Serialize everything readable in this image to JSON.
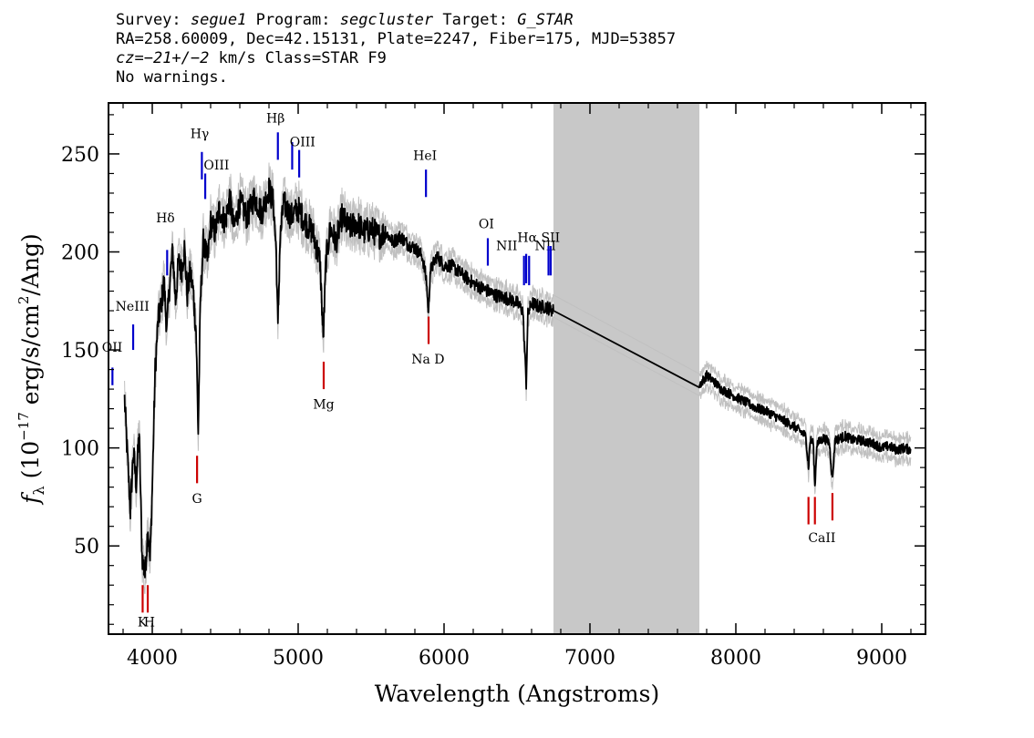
{
  "header": {
    "survey_label": "Survey:",
    "survey": "segue1",
    "program_label": "Program:",
    "program": "segcluster",
    "target_label": "Target:",
    "target": "G_STAR",
    "line2": "RA=258.60009, Dec=42.15131, Plate=2247, Fiber=175, MJD=53857",
    "cz_label": "cz",
    "cz_value": "=−21+/−2",
    "cz_rest": " km/s Class=STAR F9",
    "line4": "No warnings."
  },
  "chart_data": {
    "type": "line",
    "title": "",
    "xlabel": "Wavelength (Angstroms)",
    "ylabel_sym": "f",
    "ylabel_sub": "λ",
    "ylabel_open": " (10",
    "ylabel_exp": "−17",
    "ylabel_mid": " erg/s/cm",
    "ylabel_exp2": "2",
    "ylabel_close": "/Ang)",
    "xlim": [
      3700,
      9300
    ],
    "ylim": [
      5,
      276
    ],
    "xticks": [
      4000,
      5000,
      6000,
      7000,
      8000,
      9000
    ],
    "xtick_labels": [
      "4000",
      "5000",
      "6000",
      "7000",
      "8000",
      "9000"
    ],
    "yticks": [
      50,
      100,
      150,
      200,
      250
    ],
    "ytick_labels": [
      "50",
      "100",
      "150",
      "200",
      "250"
    ],
    "masked_region": [
      6750,
      7750
    ],
    "colors": {
      "spectrum": "#000000",
      "error": "#c0c0c0",
      "emission": "#0000cc",
      "absorption": "#cc0000",
      "mask": "#c8c8c8"
    },
    "spectrum": [
      [
        3810,
        125
      ],
      [
        3830,
        95
      ],
      [
        3850,
        68
      ],
      [
        3870,
        98
      ],
      [
        3890,
        82
      ],
      [
        3910,
        108
      ],
      [
        3930,
        45
      ],
      [
        3950,
        35
      ],
      [
        3970,
        60
      ],
      [
        3985,
        42
      ],
      [
        4000,
        80
      ],
      [
        4020,
        140
      ],
      [
        4040,
        165
      ],
      [
        4060,
        172
      ],
      [
        4080,
        185
      ],
      [
        4100,
        160
      ],
      [
        4120,
        185
      ],
      [
        4140,
        200
      ],
      [
        4160,
        175
      ],
      [
        4180,
        195
      ],
      [
        4200,
        190
      ],
      [
        4220,
        202
      ],
      [
        4240,
        178
      ],
      [
        4260,
        190
      ],
      [
        4280,
        180
      ],
      [
        4300,
        160
      ],
      [
        4315,
        108
      ],
      [
        4330,
        175
      ],
      [
        4350,
        205
      ],
      [
        4380,
        195
      ],
      [
        4400,
        215
      ],
      [
        4430,
        210
      ],
      [
        4460,
        222
      ],
      [
        4500,
        215
      ],
      [
        4530,
        228
      ],
      [
        4560,
        212
      ],
      [
        4600,
        225
      ],
      [
        4650,
        218
      ],
      [
        4700,
        228
      ],
      [
        4750,
        220
      ],
      [
        4800,
        232
      ],
      [
        4830,
        225
      ],
      [
        4850,
        200
      ],
      [
        4861,
        160
      ],
      [
        4875,
        205
      ],
      [
        4900,
        225
      ],
      [
        4950,
        218
      ],
      [
        5000,
        222
      ],
      [
        5050,
        215
      ],
      [
        5100,
        210
      ],
      [
        5150,
        195
      ],
      [
        5172,
        155
      ],
      [
        5190,
        195
      ],
      [
        5220,
        212
      ],
      [
        5260,
        205
      ],
      [
        5300,
        218
      ],
      [
        5350,
        212
      ],
      [
        5400,
        215
      ],
      [
        5450,
        210
      ],
      [
        5500,
        212
      ],
      [
        5550,
        208
      ],
      [
        5600,
        210
      ],
      [
        5650,
        205
      ],
      [
        5700,
        208
      ],
      [
        5750,
        204
      ],
      [
        5800,
        202
      ],
      [
        5850,
        198
      ],
      [
        5880,
        185
      ],
      [
        5893,
        168
      ],
      [
        5905,
        190
      ],
      [
        5950,
        198
      ],
      [
        6000,
        193
      ],
      [
        6050,
        193
      ],
      [
        6100,
        190
      ],
      [
        6150,
        187
      ],
      [
        6200,
        184
      ],
      [
        6250,
        182
      ],
      [
        6300,
        180
      ],
      [
        6350,
        178
      ],
      [
        6400,
        177
      ],
      [
        6450,
        176
      ],
      [
        6500,
        174
      ],
      [
        6540,
        170
      ],
      [
        6563,
        133
      ],
      [
        6575,
        168
      ],
      [
        6600,
        174
      ],
      [
        6650,
        172
      ],
      [
        6700,
        172
      ],
      [
        6750,
        170
      ],
      [
        7750,
        132
      ],
      [
        7800,
        137
      ],
      [
        7850,
        134
      ],
      [
        7900,
        130
      ],
      [
        7950,
        128
      ],
      [
        8000,
        126
      ],
      [
        8050,
        124
      ],
      [
        8100,
        122
      ],
      [
        8150,
        120
      ],
      [
        8200,
        119
      ],
      [
        8250,
        117
      ],
      [
        8300,
        115
      ],
      [
        8350,
        113
      ],
      [
        8400,
        111
      ],
      [
        8450,
        108
      ],
      [
        8480,
        106
      ],
      [
        8498,
        90
      ],
      [
        8510,
        104
      ],
      [
        8530,
        103
      ],
      [
        8542,
        80
      ],
      [
        8555,
        102
      ],
      [
        8600,
        105
      ],
      [
        8640,
        103
      ],
      [
        8662,
        84
      ],
      [
        8680,
        104
      ],
      [
        8750,
        106
      ],
      [
        8800,
        104
      ],
      [
        8850,
        104
      ],
      [
        8900,
        103
      ],
      [
        8950,
        102
      ],
      [
        9000,
        100
      ],
      [
        9050,
        101
      ],
      [
        9100,
        99
      ],
      [
        9150,
        100
      ],
      [
        9200,
        99
      ]
    ],
    "emission_lines": [
      {
        "label": "OII",
        "x": 3727,
        "y0": 132,
        "y1": 141,
        "lx": 3725,
        "ly": 149
      },
      {
        "label": "NeIII",
        "x": 3869,
        "y0": 150,
        "y1": 163,
        "lx": 3864,
        "ly": 170
      },
      {
        "label": "Hδ",
        "x": 4102,
        "y0": 188,
        "y1": 201,
        "lx": 4090,
        "ly": 215
      },
      {
        "label": "Hγ",
        "x": 4340,
        "y0": 237,
        "y1": 251,
        "lx": 4325,
        "ly": 258
      },
      {
        "label": "OIII",
        "x": 4363,
        "y0": 227,
        "y1": 240,
        "lx": 4440,
        "ly": 242
      },
      {
        "label": "Hβ",
        "x": 4861,
        "y0": 247,
        "y1": 261,
        "lx": 4845,
        "ly": 266
      },
      {
        "label": "OIII",
        "x": 4959,
        "y0": 242,
        "y1": 256,
        "lx": 5030,
        "ly": 254
      },
      {
        "label": "OIII",
        "x": 5007,
        "y0": 238,
        "y1": 252,
        "lx": 5030,
        "ly": 254
      },
      {
        "label": "HeI",
        "x": 5876,
        "y0": 228,
        "y1": 242,
        "lx": 5870,
        "ly": 247
      },
      {
        "label": "OI",
        "x": 6300,
        "y0": 193,
        "y1": 207,
        "lx": 6290,
        "ly": 212
      },
      {
        "label": "NII",
        "x": 6548,
        "y0": 183,
        "y1": 198,
        "lx": 6430,
        "ly": 201
      },
      {
        "label": "Hα",
        "x": 6563,
        "y0": 184,
        "y1": 199,
        "lx": 6570,
        "ly": 205
      },
      {
        "label": "NII",
        "x": 6583,
        "y0": 183,
        "y1": 198,
        "lx": 6695,
        "ly": 201
      },
      {
        "label": "SII",
        "x": 6716,
        "y0": 188,
        "y1": 203,
        "lx": 6730,
        "ly": 205
      },
      {
        "label": "SII",
        "x": 6731,
        "y0": 188,
        "y1": 203,
        "lx": 6730,
        "ly": 205
      }
    ],
    "absorption_lines": [
      {
        "label": "K",
        "x": 3934,
        "y0": 16,
        "y1": 30,
        "lx": 3932,
        "ly": 9
      },
      {
        "label": "H",
        "x": 3969,
        "y0": 16,
        "y1": 30,
        "lx": 3980,
        "ly": 9
      },
      {
        "label": "G",
        "x": 4307,
        "y0": 82,
        "y1": 96,
        "lx": 4307,
        "ly": 72
      },
      {
        "label": "Mg",
        "x": 5175,
        "y0": 130,
        "y1": 144,
        "lx": 5175,
        "ly": 120
      },
      {
        "label": "Na D",
        "x": 5894,
        "y0": 153,
        "y1": 167,
        "lx": 5890,
        "ly": 143
      },
      {
        "label": "CaII",
        "x": 8498,
        "y0": 61,
        "y1": 75,
        "lx": 8590,
        "ly": 52
      },
      {
        "label": "CaII",
        "x": 8542,
        "y0": 61,
        "y1": 75,
        "lx": 8590,
        "ly": 52
      },
      {
        "label": "CaII",
        "x": 8662,
        "y0": 63,
        "y1": 77,
        "lx": 8590,
        "ly": 52
      }
    ]
  }
}
